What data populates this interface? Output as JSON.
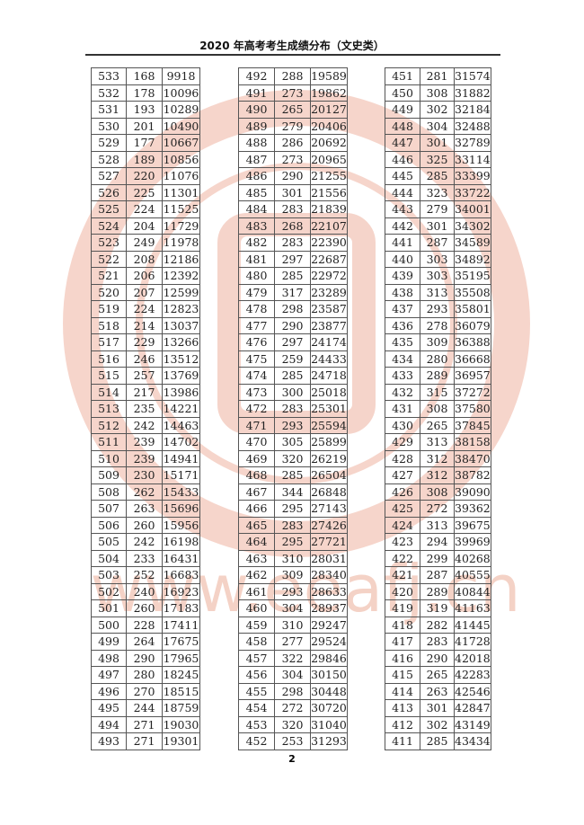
{
  "header": {
    "title": "2020 年高考考生成绩分布（文史类）"
  },
  "watermark": {
    "text": "www.eeafj.cn",
    "color": "#e8a08a"
  },
  "page_number": "2",
  "blocks": [
    [
      [
        "533",
        "168",
        "9918"
      ],
      [
        "532",
        "178",
        "10096"
      ],
      [
        "531",
        "193",
        "10289"
      ],
      [
        "530",
        "201",
        "10490"
      ],
      [
        "529",
        "177",
        "10667"
      ],
      [
        "528",
        "189",
        "10856"
      ],
      [
        "527",
        "220",
        "11076"
      ],
      [
        "526",
        "225",
        "11301"
      ],
      [
        "525",
        "224",
        "11525"
      ],
      [
        "524",
        "204",
        "11729"
      ],
      [
        "523",
        "249",
        "11978"
      ],
      [
        "522",
        "208",
        "12186"
      ],
      [
        "521",
        "206",
        "12392"
      ],
      [
        "520",
        "207",
        "12599"
      ],
      [
        "519",
        "224",
        "12823"
      ],
      [
        "518",
        "214",
        "13037"
      ],
      [
        "517",
        "229",
        "13266"
      ],
      [
        "516",
        "246",
        "13512"
      ],
      [
        "515",
        "257",
        "13769"
      ],
      [
        "514",
        "217",
        "13986"
      ],
      [
        "513",
        "235",
        "14221"
      ],
      [
        "512",
        "242",
        "14463"
      ],
      [
        "511",
        "239",
        "14702"
      ],
      [
        "510",
        "239",
        "14941"
      ],
      [
        "509",
        "230",
        "15171"
      ],
      [
        "508",
        "262",
        "15433"
      ],
      [
        "507",
        "263",
        "15696"
      ],
      [
        "506",
        "260",
        "15956"
      ],
      [
        "505",
        "242",
        "16198"
      ],
      [
        "504",
        "233",
        "16431"
      ],
      [
        "503",
        "252",
        "16683"
      ],
      [
        "502",
        "240",
        "16923"
      ],
      [
        "501",
        "260",
        "17183"
      ],
      [
        "500",
        "228",
        "17411"
      ],
      [
        "499",
        "264",
        "17675"
      ],
      [
        "498",
        "290",
        "17965"
      ],
      [
        "497",
        "280",
        "18245"
      ],
      [
        "496",
        "270",
        "18515"
      ],
      [
        "495",
        "244",
        "18759"
      ],
      [
        "494",
        "271",
        "19030"
      ],
      [
        "493",
        "271",
        "19301"
      ]
    ],
    [
      [
        "492",
        "288",
        "19589"
      ],
      [
        "491",
        "273",
        "19862"
      ],
      [
        "490",
        "265",
        "20127"
      ],
      [
        "489",
        "279",
        "20406"
      ],
      [
        "488",
        "286",
        "20692"
      ],
      [
        "487",
        "273",
        "20965"
      ],
      [
        "486",
        "290",
        "21255"
      ],
      [
        "485",
        "301",
        "21556"
      ],
      [
        "484",
        "283",
        "21839"
      ],
      [
        "483",
        "268",
        "22107"
      ],
      [
        "482",
        "283",
        "22390"
      ],
      [
        "481",
        "297",
        "22687"
      ],
      [
        "480",
        "285",
        "22972"
      ],
      [
        "479",
        "317",
        "23289"
      ],
      [
        "478",
        "298",
        "23587"
      ],
      [
        "477",
        "290",
        "23877"
      ],
      [
        "476",
        "297",
        "24174"
      ],
      [
        "475",
        "259",
        "24433"
      ],
      [
        "474",
        "285",
        "24718"
      ],
      [
        "473",
        "300",
        "25018"
      ],
      [
        "472",
        "283",
        "25301"
      ],
      [
        "471",
        "293",
        "25594"
      ],
      [
        "470",
        "305",
        "25899"
      ],
      [
        "469",
        "320",
        "26219"
      ],
      [
        "468",
        "285",
        "26504"
      ],
      [
        "467",
        "344",
        "26848"
      ],
      [
        "466",
        "295",
        "27143"
      ],
      [
        "465",
        "283",
        "27426"
      ],
      [
        "464",
        "295",
        "27721"
      ],
      [
        "463",
        "310",
        "28031"
      ],
      [
        "462",
        "309",
        "28340"
      ],
      [
        "461",
        "293",
        "28633"
      ],
      [
        "460",
        "304",
        "28937"
      ],
      [
        "459",
        "310",
        "29247"
      ],
      [
        "458",
        "277",
        "29524"
      ],
      [
        "457",
        "322",
        "29846"
      ],
      [
        "456",
        "304",
        "30150"
      ],
      [
        "455",
        "298",
        "30448"
      ],
      [
        "454",
        "272",
        "30720"
      ],
      [
        "453",
        "320",
        "31040"
      ],
      [
        "452",
        "253",
        "31293"
      ]
    ],
    [
      [
        "451",
        "281",
        "31574"
      ],
      [
        "450",
        "308",
        "31882"
      ],
      [
        "449",
        "302",
        "32184"
      ],
      [
        "448",
        "304",
        "32488"
      ],
      [
        "447",
        "301",
        "32789"
      ],
      [
        "446",
        "325",
        "33114"
      ],
      [
        "445",
        "285",
        "33399"
      ],
      [
        "444",
        "323",
        "33722"
      ],
      [
        "443",
        "279",
        "34001"
      ],
      [
        "442",
        "301",
        "34302"
      ],
      [
        "441",
        "287",
        "34589"
      ],
      [
        "440",
        "303",
        "34892"
      ],
      [
        "439",
        "303",
        "35195"
      ],
      [
        "438",
        "313",
        "35508"
      ],
      [
        "437",
        "293",
        "35801"
      ],
      [
        "436",
        "278",
        "36079"
      ],
      [
        "435",
        "309",
        "36388"
      ],
      [
        "434",
        "280",
        "36668"
      ],
      [
        "433",
        "289",
        "36957"
      ],
      [
        "432",
        "315",
        "37272"
      ],
      [
        "431",
        "308",
        "37580"
      ],
      [
        "430",
        "265",
        "37845"
      ],
      [
        "429",
        "313",
        "38158"
      ],
      [
        "428",
        "312",
        "38470"
      ],
      [
        "427",
        "312",
        "38782"
      ],
      [
        "426",
        "308",
        "39090"
      ],
      [
        "425",
        "272",
        "39362"
      ],
      [
        "424",
        "313",
        "39675"
      ],
      [
        "423",
        "294",
        "39969"
      ],
      [
        "422",
        "299",
        "40268"
      ],
      [
        "421",
        "287",
        "40555"
      ],
      [
        "420",
        "289",
        "40844"
      ],
      [
        "419",
        "319",
        "41163"
      ],
      [
        "418",
        "282",
        "41445"
      ],
      [
        "417",
        "283",
        "41728"
      ],
      [
        "416",
        "290",
        "42018"
      ],
      [
        "415",
        "265",
        "42283"
      ],
      [
        "414",
        "263",
        "42546"
      ],
      [
        "413",
        "301",
        "42847"
      ],
      [
        "412",
        "302",
        "43149"
      ],
      [
        "411",
        "285",
        "43434"
      ]
    ]
  ]
}
